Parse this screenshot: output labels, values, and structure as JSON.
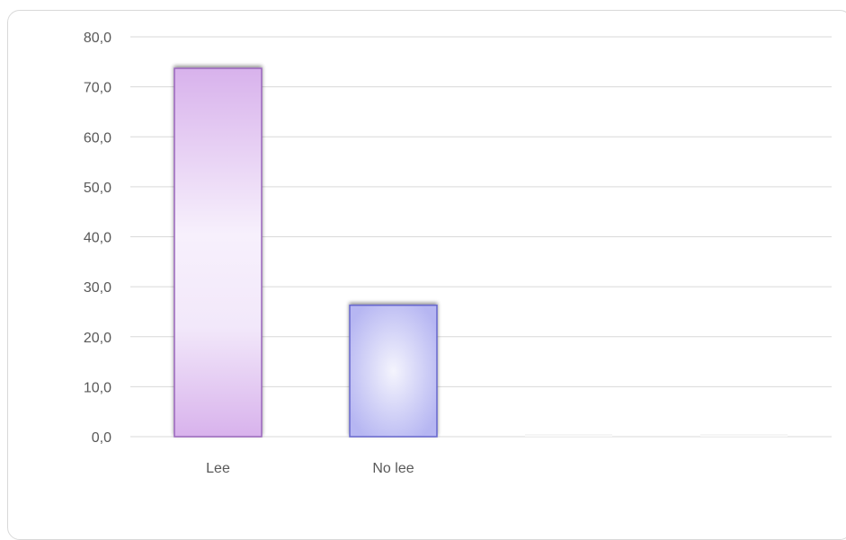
{
  "chart_data": {
    "type": "bar",
    "title": "",
    "xlabel": "",
    "ylabel": "",
    "categories": [
      "Lee",
      "No lee",
      "",
      ""
    ],
    "values": [
      73.7,
      26.3,
      0,
      0
    ],
    "ylim": [
      0,
      80
    ],
    "yticks": [
      0,
      10,
      20,
      30,
      40,
      50,
      60,
      70,
      80
    ],
    "ytick_labels": [
      "0,0",
      "10,0",
      "20,0",
      "30,0",
      "40,0",
      "50,0",
      "60,0",
      "70,0",
      "80,0"
    ],
    "grid": true,
    "legend": "none",
    "colors": [
      "#d9b3ee",
      "#b8b8f4",
      "#f2f2f2",
      "#f2f2f2"
    ],
    "edge_colors": [
      "#9966bb",
      "#6666cc",
      "#eeeeee",
      "#eeeeee"
    ]
  }
}
